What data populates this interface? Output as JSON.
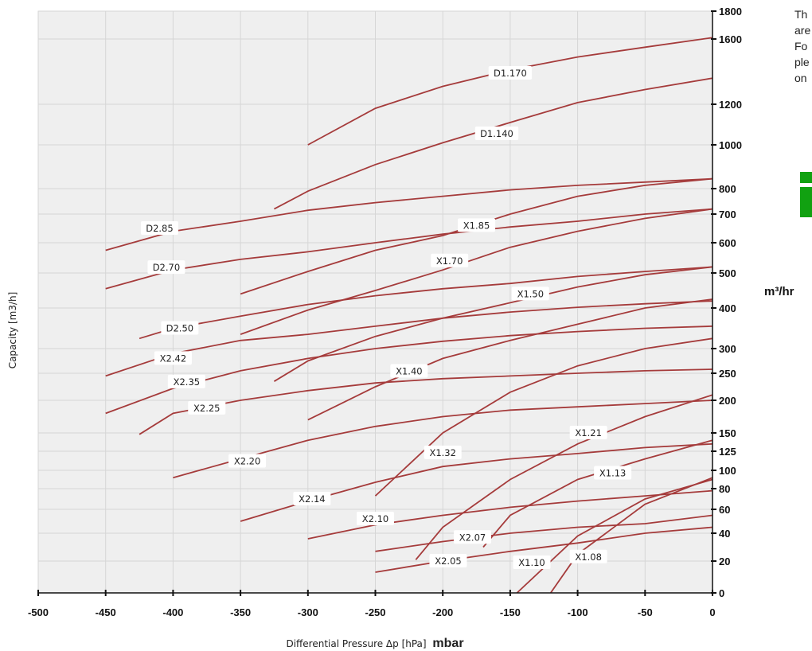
{
  "chart_data": {
    "type": "line",
    "title": "",
    "xlabel": "Differential Pressure Δp [hPa]",
    "xlabel_unit": "mbar",
    "ylabel": "Capacity [m3/h]",
    "ylabel_unit": "m³/hr",
    "xlim": [
      -500,
      0
    ],
    "x_ticks": [
      -500,
      -450,
      -400,
      -350,
      -300,
      -250,
      -200,
      -150,
      -100,
      -50,
      0
    ],
    "y_ticks": [
      0,
      20,
      40,
      60,
      80,
      100,
      125,
      150,
      200,
      250,
      300,
      400,
      500,
      600,
      700,
      800,
      1000,
      1200,
      1600,
      1800
    ],
    "y_scale": "nonlinear",
    "grid": true,
    "line_color": "#a53b3b",
    "series": [
      {
        "name": "D1.170",
        "points": [
          [
            -300,
            1000
          ],
          [
            -250,
            1180
          ],
          [
            -200,
            1310
          ],
          [
            -150,
            1410
          ],
          [
            -100,
            1490
          ],
          [
            -50,
            1550
          ],
          [
            0,
            1610
          ]
        ],
        "label_at": [
          -150,
          1390
        ]
      },
      {
        "name": "D1.140",
        "points": [
          [
            -325,
            720
          ],
          [
            -300,
            790
          ],
          [
            -250,
            910
          ],
          [
            -200,
            1010
          ],
          [
            -150,
            1110
          ],
          [
            -100,
            1210
          ],
          [
            -50,
            1290
          ],
          [
            0,
            1360
          ]
        ],
        "label_at": [
          -160,
          1055
        ]
      },
      {
        "name": "D2.85",
        "points": [
          [
            -450,
            575
          ],
          [
            -400,
            640
          ],
          [
            -350,
            675
          ],
          [
            -300,
            715
          ],
          [
            -250,
            745
          ],
          [
            -200,
            770
          ],
          [
            -150,
            795
          ],
          [
            -100,
            815
          ],
          [
            -50,
            830
          ],
          [
            0,
            845
          ]
        ],
        "label_at": [
          -410,
          650
        ]
      },
      {
        "name": "X1.85",
        "points": [
          [
            -350,
            440
          ],
          [
            -300,
            505
          ],
          [
            -250,
            575
          ],
          [
            -200,
            625
          ],
          [
            -150,
            700
          ],
          [
            -100,
            770
          ],
          [
            -50,
            815
          ],
          [
            0,
            845
          ]
        ],
        "label_at": [
          -175,
          660
        ]
      },
      {
        "name": "D2.70",
        "points": [
          [
            -450,
            455
          ],
          [
            -400,
            510
          ],
          [
            -350,
            545
          ],
          [
            -300,
            570
          ],
          [
            -250,
            600
          ],
          [
            -200,
            630
          ],
          [
            -150,
            655
          ],
          [
            -100,
            675
          ],
          [
            -50,
            700
          ],
          [
            0,
            720
          ]
        ],
        "label_at": [
          -405,
          518
        ]
      },
      {
        "name": "X1.70",
        "points": [
          [
            -350,
            335
          ],
          [
            -300,
            395
          ],
          [
            -250,
            450
          ],
          [
            -200,
            510
          ],
          [
            -150,
            585
          ],
          [
            -100,
            640
          ],
          [
            -50,
            685
          ],
          [
            0,
            720
          ]
        ],
        "label_at": [
          -195,
          540
        ]
      },
      {
        "name": "D2.50",
        "points": [
          [
            -425,
            325
          ],
          [
            -400,
            350
          ],
          [
            -350,
            380
          ],
          [
            -300,
            410
          ],
          [
            -250,
            435
          ],
          [
            -200,
            455
          ],
          [
            -150,
            470
          ],
          [
            -100,
            490
          ],
          [
            -50,
            505
          ],
          [
            0,
            520
          ]
        ],
        "label_at": [
          -395,
          350
        ]
      },
      {
        "name": "X1.50",
        "points": [
          [
            -325,
            235
          ],
          [
            -300,
            275
          ],
          [
            -250,
            330
          ],
          [
            -200,
            375
          ],
          [
            -150,
            415
          ],
          [
            -100,
            460
          ],
          [
            -50,
            495
          ],
          [
            0,
            520
          ]
        ],
        "label_at": [
          -135,
          440
        ]
      },
      {
        "name": "X2.42",
        "points": [
          [
            -450,
            245
          ],
          [
            -400,
            290
          ],
          [
            -350,
            320
          ],
          [
            -300,
            335
          ],
          [
            -250,
            355
          ],
          [
            -200,
            375
          ],
          [
            -150,
            390
          ],
          [
            -100,
            402
          ],
          [
            -50,
            412
          ],
          [
            0,
            420
          ]
        ],
        "label_at": [
          -400,
          280
        ]
      },
      {
        "name": "X2.35",
        "points": [
          [
            -450,
            180
          ],
          [
            -400,
            222
          ],
          [
            -350,
            255
          ],
          [
            -300,
            280
          ],
          [
            -250,
            300
          ],
          [
            -200,
            318
          ],
          [
            -150,
            332
          ],
          [
            -100,
            342
          ],
          [
            -50,
            350
          ],
          [
            0,
            355
          ]
        ],
        "label_at": [
          -390,
          234
        ]
      },
      {
        "name": "X1.40",
        "points": [
          [
            -300,
            170
          ],
          [
            -250,
            225
          ],
          [
            -200,
            280
          ],
          [
            -150,
            320
          ],
          [
            -100,
            360
          ],
          [
            -50,
            400
          ],
          [
            0,
            425
          ]
        ],
        "label_at": [
          -225,
          254
        ]
      },
      {
        "name": "X2.25",
        "points": [
          [
            -425,
            148
          ],
          [
            -400,
            180
          ],
          [
            -350,
            200
          ],
          [
            -300,
            218
          ],
          [
            -250,
            232
          ],
          [
            -200,
            240
          ],
          [
            -150,
            245
          ],
          [
            -100,
            250
          ],
          [
            -50,
            255
          ],
          [
            0,
            258
          ]
        ],
        "label_at": [
          -375,
          188
        ]
      },
      {
        "name": "X1.32",
        "points": [
          [
            -250,
            73
          ],
          [
            -200,
            150
          ],
          [
            -150,
            215
          ],
          [
            -100,
            265
          ],
          [
            -50,
            300
          ],
          [
            0,
            325
          ]
        ],
        "label_at": [
          -200,
          123
        ]
      },
      {
        "name": "X2.20",
        "points": [
          [
            -400,
            92
          ],
          [
            -350,
            115
          ],
          [
            -300,
            140
          ],
          [
            -250,
            160
          ],
          [
            -200,
            175
          ],
          [
            -150,
            185
          ],
          [
            -100,
            190
          ],
          [
            -50,
            195
          ],
          [
            0,
            200
          ]
        ],
        "label_at": [
          -345,
          112
        ]
      },
      {
        "name": "X1.21",
        "points": [
          [
            -220,
            21
          ],
          [
            -200,
            45
          ],
          [
            -150,
            90
          ],
          [
            -100,
            135
          ],
          [
            -50,
            175
          ],
          [
            0,
            210
          ]
        ],
        "label_at": [
          -92,
          150
        ]
      },
      {
        "name": "X2.14",
        "points": [
          [
            -350,
            50
          ],
          [
            -300,
            68
          ],
          [
            -250,
            87
          ],
          [
            -200,
            105
          ],
          [
            -150,
            115
          ],
          [
            -100,
            122
          ],
          [
            -50,
            130
          ],
          [
            0,
            135
          ]
        ],
        "label_at": [
          -297,
          70
        ]
      },
      {
        "name": "X1.13",
        "points": [
          [
            -170,
            30
          ],
          [
            -150,
            55
          ],
          [
            -100,
            90
          ],
          [
            -50,
            115
          ],
          [
            0,
            140
          ]
        ],
        "label_at": [
          -74,
          97
        ]
      },
      {
        "name": "X2.10",
        "points": [
          [
            -300,
            36
          ],
          [
            -250,
            47
          ],
          [
            -200,
            55
          ],
          [
            -150,
            62
          ],
          [
            -100,
            68
          ],
          [
            -50,
            73
          ],
          [
            0,
            78
          ]
        ],
        "label_at": [
          -250,
          52
        ]
      },
      {
        "name": "X2.07",
        "points": [
          [
            -250,
            27
          ],
          [
            -200,
            34
          ],
          [
            -150,
            40
          ],
          [
            -100,
            45
          ],
          [
            -50,
            48
          ],
          [
            0,
            55
          ]
        ],
        "label_at": [
          -178,
          37
        ]
      },
      {
        "name": "X2.05",
        "points": [
          [
            -250,
            13
          ],
          [
            -200,
            20
          ],
          [
            -150,
            27
          ],
          [
            -100,
            33
          ],
          [
            -50,
            40
          ],
          [
            0,
            45
          ]
        ],
        "label_at": [
          -196,
          20
        ]
      },
      {
        "name": "X1.10",
        "points": [
          [
            -145,
            0
          ],
          [
            -100,
            38
          ],
          [
            -50,
            70
          ],
          [
            0,
            90
          ]
        ],
        "label_at": [
          -134,
          19
        ]
      },
      {
        "name": "X1.08",
        "points": [
          [
            -120,
            0
          ],
          [
            -100,
            25
          ],
          [
            -50,
            65
          ],
          [
            0,
            92
          ]
        ],
        "label_at": [
          -92,
          23
        ]
      }
    ]
  },
  "side_text": {
    "line1": "Th",
    "line2": "are",
    "line3": "Fo",
    "line4": "ple",
    "line5": "on"
  },
  "side_icon": "info-icon"
}
